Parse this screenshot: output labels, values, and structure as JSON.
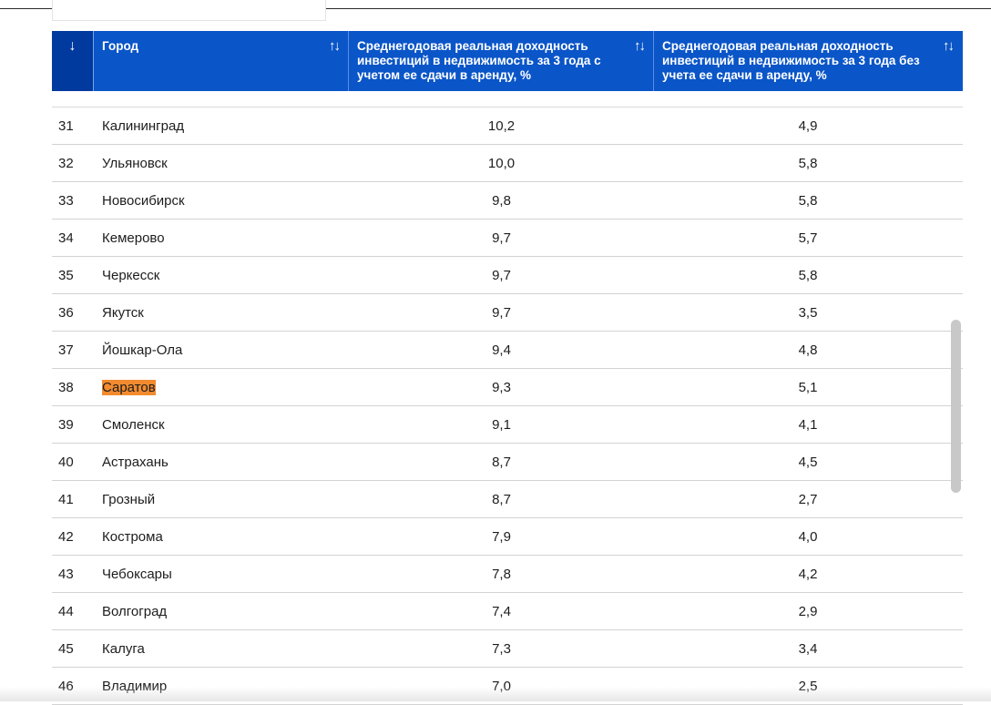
{
  "header": {
    "sort_glyph": "↓",
    "city": "Город",
    "col1": "Среднегодовая реальная доходность инвестиций в недвижимость за 3 года с учетом ее сдачи в аренду, %",
    "col2": "Среднегодовая реальная доходность инвестиций в недвижимость за 3 года без учета ее сдачи в аренду, %",
    "sort_toggle": "↑↓"
  },
  "rows": [
    {
      "num": "31",
      "city": "Калининград",
      "v1": "10,2",
      "v2": "4,9"
    },
    {
      "num": "32",
      "city": "Ульяновск",
      "v1": "10,0",
      "v2": "5,8"
    },
    {
      "num": "33",
      "city": "Новосибирск",
      "v1": "9,8",
      "v2": "5,8"
    },
    {
      "num": "34",
      "city": "Кемерово",
      "v1": "9,7",
      "v2": "5,7"
    },
    {
      "num": "35",
      "city": "Черкесск",
      "v1": "9,7",
      "v2": "5,8"
    },
    {
      "num": "36",
      "city": "Якутск",
      "v1": "9,7",
      "v2": "3,5"
    },
    {
      "num": "37",
      "city": "Йошкар-Ола",
      "v1": "9,4",
      "v2": "4,8"
    },
    {
      "num": "38",
      "city": "Саратов",
      "v1": "9,3",
      "v2": "5,1",
      "highlight": true
    },
    {
      "num": "39",
      "city": "Смоленск",
      "v1": "9,1",
      "v2": "4,1"
    },
    {
      "num": "40",
      "city": "Астрахань",
      "v1": "8,7",
      "v2": "4,5"
    },
    {
      "num": "41",
      "city": "Грозный",
      "v1": "8,7",
      "v2": "2,7"
    },
    {
      "num": "42",
      "city": "Кострома",
      "v1": "7,9",
      "v2": "4,0"
    },
    {
      "num": "43",
      "city": "Чебоксары",
      "v1": "7,8",
      "v2": "4,2"
    },
    {
      "num": "44",
      "city": "Волгоград",
      "v1": "7,4",
      "v2": "2,9"
    },
    {
      "num": "45",
      "city": "Калуга",
      "v1": "7,3",
      "v2": "3,4"
    },
    {
      "num": "46",
      "city": "Владимир",
      "v1": "7,0",
      "v2": "2,5"
    }
  ],
  "colors": {
    "header_bg": "#0a55c8",
    "sort_col_bg": "#003a9e",
    "highlight": "#f28b2f"
  }
}
